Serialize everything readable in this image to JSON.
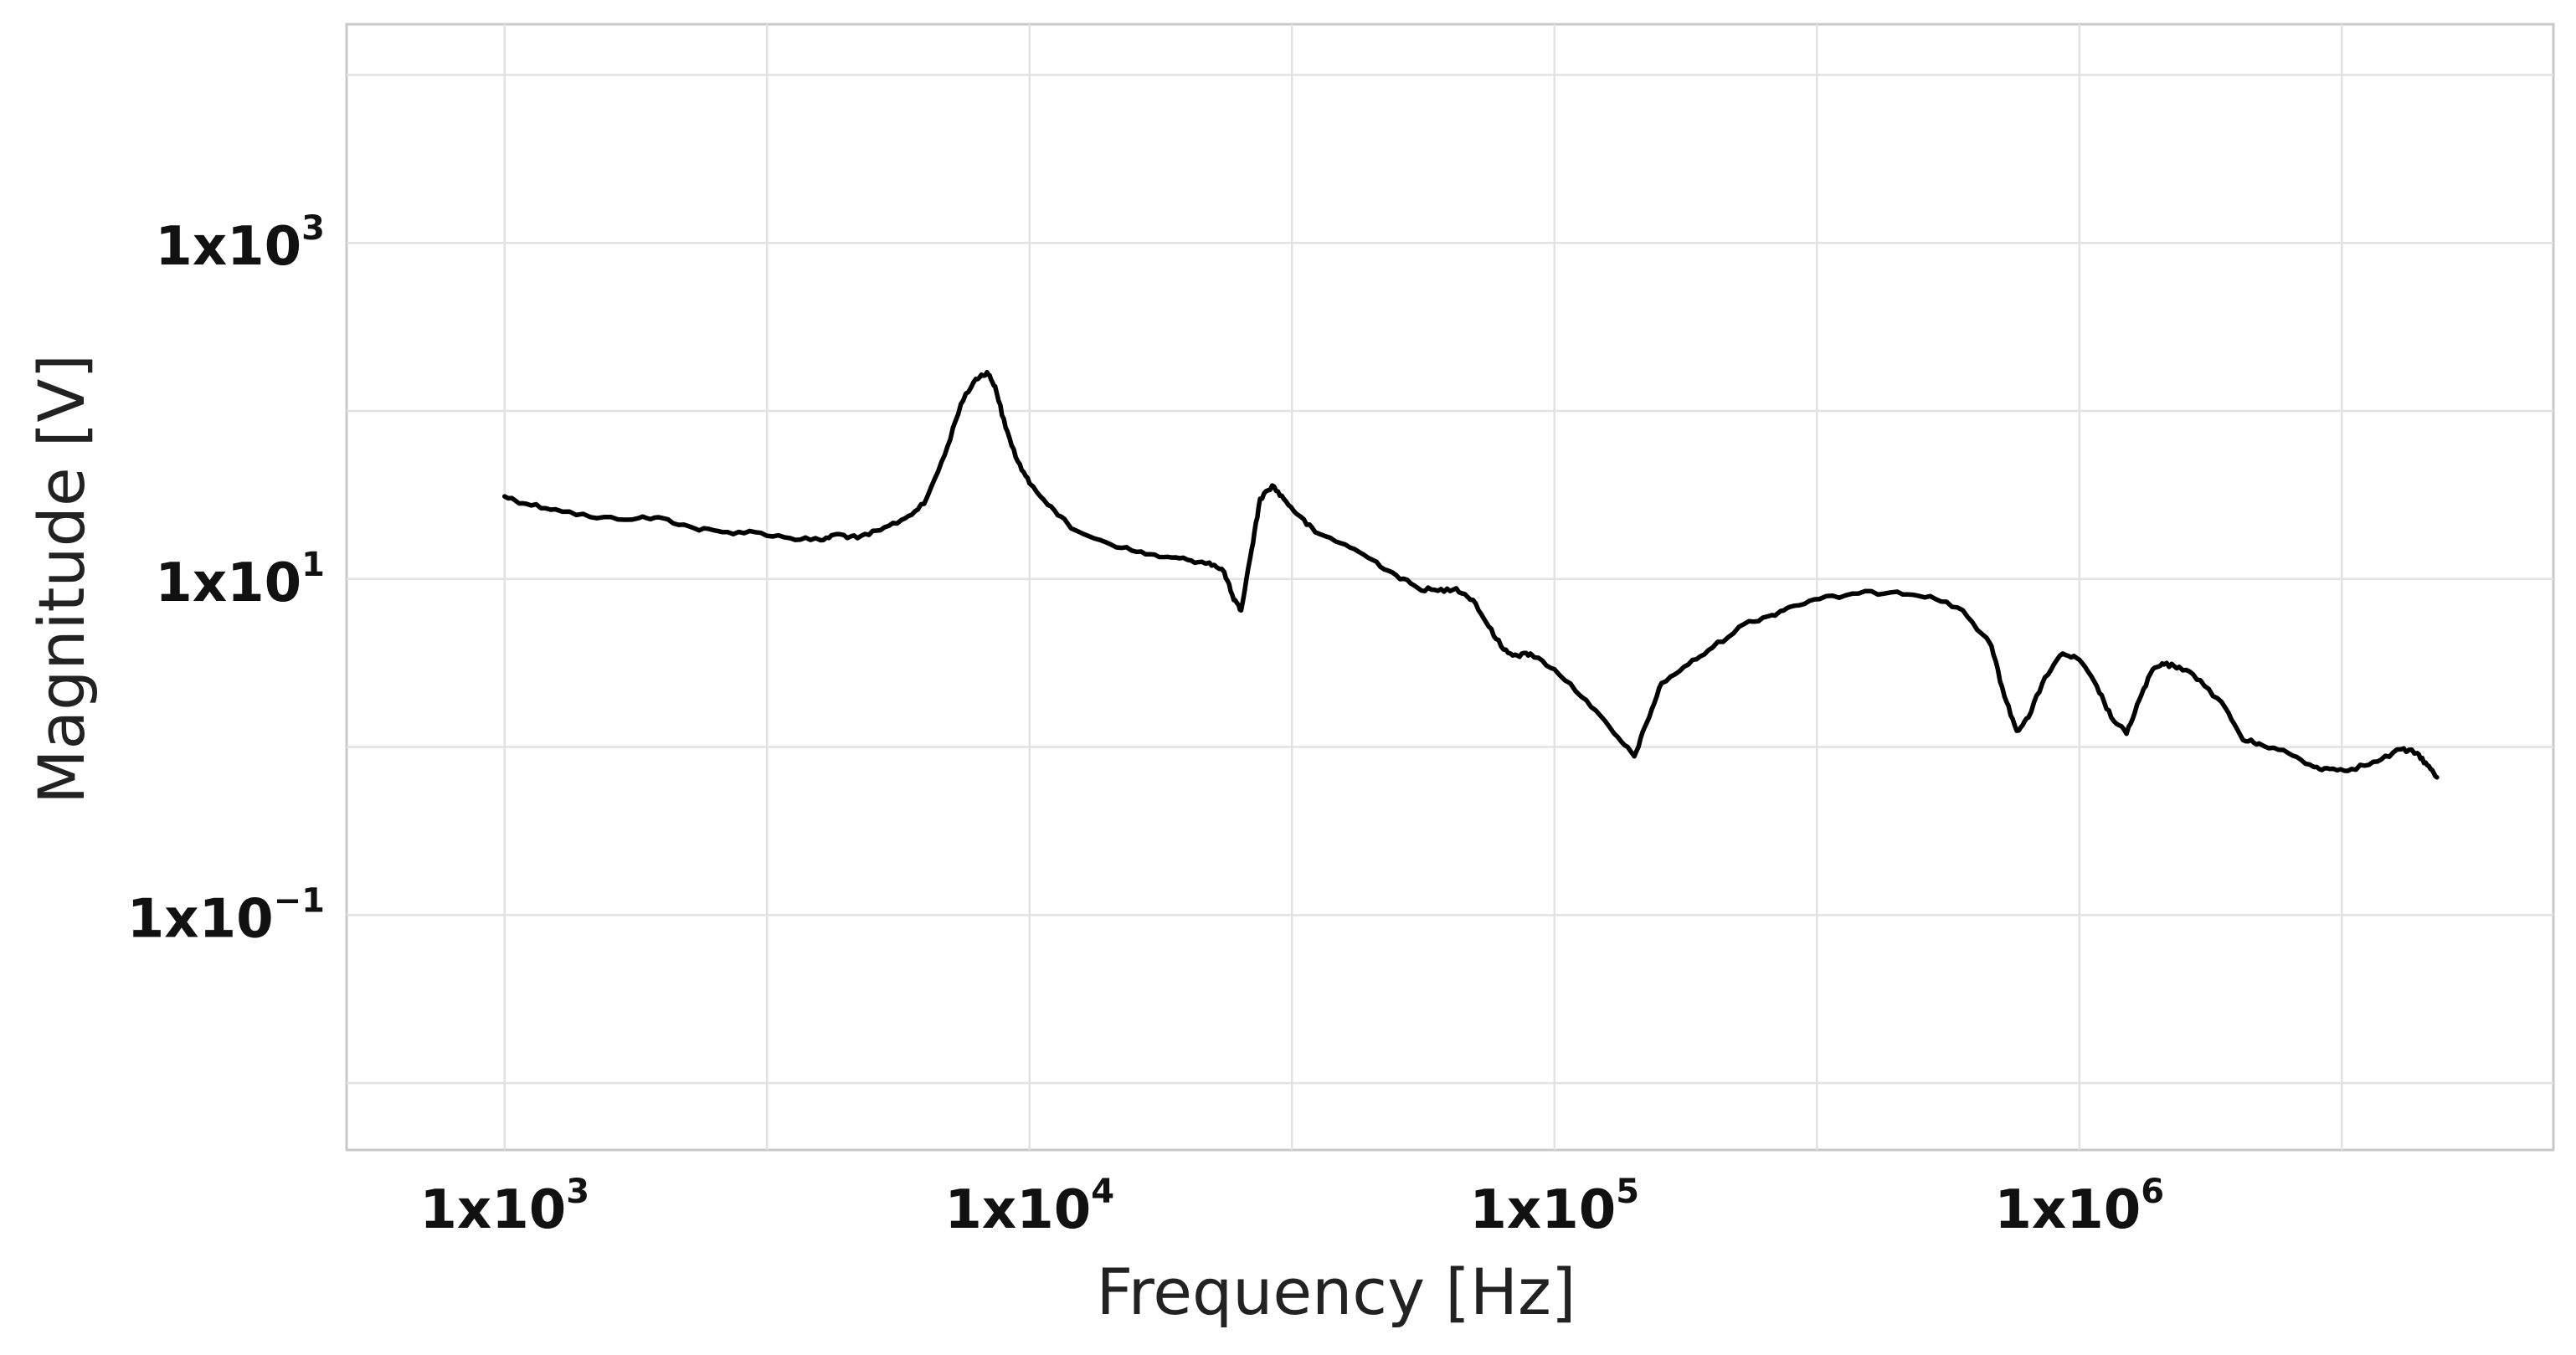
{
  "chart_data": {
    "type": "line",
    "title": "",
    "xlabel": "Frequency [Hz]",
    "ylabel": "Magnitude [V]",
    "x_scale": "log",
    "y_scale": "log",
    "xlim": [
      500,
      8000000
    ],
    "ylim": [
      0.004,
      20000
    ],
    "grid": true,
    "x_ticks": [
      {
        "value": 1000,
        "base": "1x10",
        "exp": "3"
      },
      {
        "value": 10000,
        "base": "1x10",
        "exp": "4"
      },
      {
        "value": 100000,
        "base": "1x10",
        "exp": "5"
      },
      {
        "value": 1000000,
        "base": "1x10",
        "exp": "6"
      }
    ],
    "y_ticks": [
      {
        "value": 0.1,
        "base": "1x10",
        "exp": "−1"
      },
      {
        "value": 10,
        "base": "1x10",
        "exp": "1"
      },
      {
        "value": 1000,
        "base": "1x10",
        "exp": "3"
      }
    ],
    "series": [
      {
        "color": "#000000",
        "x": [
          1000,
          1100,
          1250,
          1500,
          1800,
          2000,
          2300,
          2600,
          3000,
          3500,
          4000,
          4300,
          4700,
          5200,
          5800,
          6300,
          6900,
          7400,
          7900,
          8300,
          8600,
          9000,
          9500,
          10000,
          11000,
          12000,
          14000,
          16000,
          18000,
          20000,
          22000,
          23500,
          24500,
          25300,
          26500,
          27500,
          29000,
          30500,
          32500,
          35000,
          40000,
          45000,
          50000,
          55000,
          60000,
          65000,
          70000,
          75000,
          80000,
          85000,
          90000,
          100000,
          115000,
          130000,
          142000,
          150000,
          160000,
          180000,
          200000,
          230000,
          260000,
          280000,
          320000,
          380000,
          450000,
          520000,
          600000,
          680000,
          720000,
          760000,
          800000,
          860000,
          930000,
          1000000,
          1080000,
          1150000,
          1230000,
          1300000,
          1380000,
          1450000,
          1550000,
          1700000,
          1900000,
          2050000,
          2200000,
          2500000,
          2800000,
          3000000,
          3300000,
          3700000,
          4100000,
          4400000,
          4600000,
          4800000
        ],
        "y": [
          31,
          28,
          26,
          23,
          23,
          23,
          20,
          19,
          19,
          17.5,
          17,
          18.5,
          17.5,
          19.5,
          23,
          28,
          55,
          110,
          155,
          170,
          140,
          80,
          50,
          37,
          27,
          20,
          16.5,
          14.5,
          13.5,
          13,
          12.5,
          11,
          7.5,
          6.5,
          15,
          30,
          36,
          30,
          24,
          19,
          16,
          13,
          10.5,
          8.8,
          8.5,
          8.8,
          7.5,
          5.2,
          3.8,
          3.5,
          3.6,
          2.9,
          1.9,
          1.2,
          0.88,
          1.4,
          2.4,
          3.1,
          3.9,
          5.4,
          6.1,
          6.8,
          7.6,
          8.2,
          8.4,
          7.9,
          6.5,
          4.0,
          2.0,
          1.25,
          1.5,
          2.6,
          3.6,
          3.3,
          2.3,
          1.5,
          1.2,
          1.9,
          2.9,
          3.1,
          3.0,
          2.5,
          1.7,
          1.1,
          1.05,
          0.92,
          0.76,
          0.74,
          0.74,
          0.82,
          0.97,
          0.92,
          0.78,
          0.66
        ]
      }
    ]
  }
}
